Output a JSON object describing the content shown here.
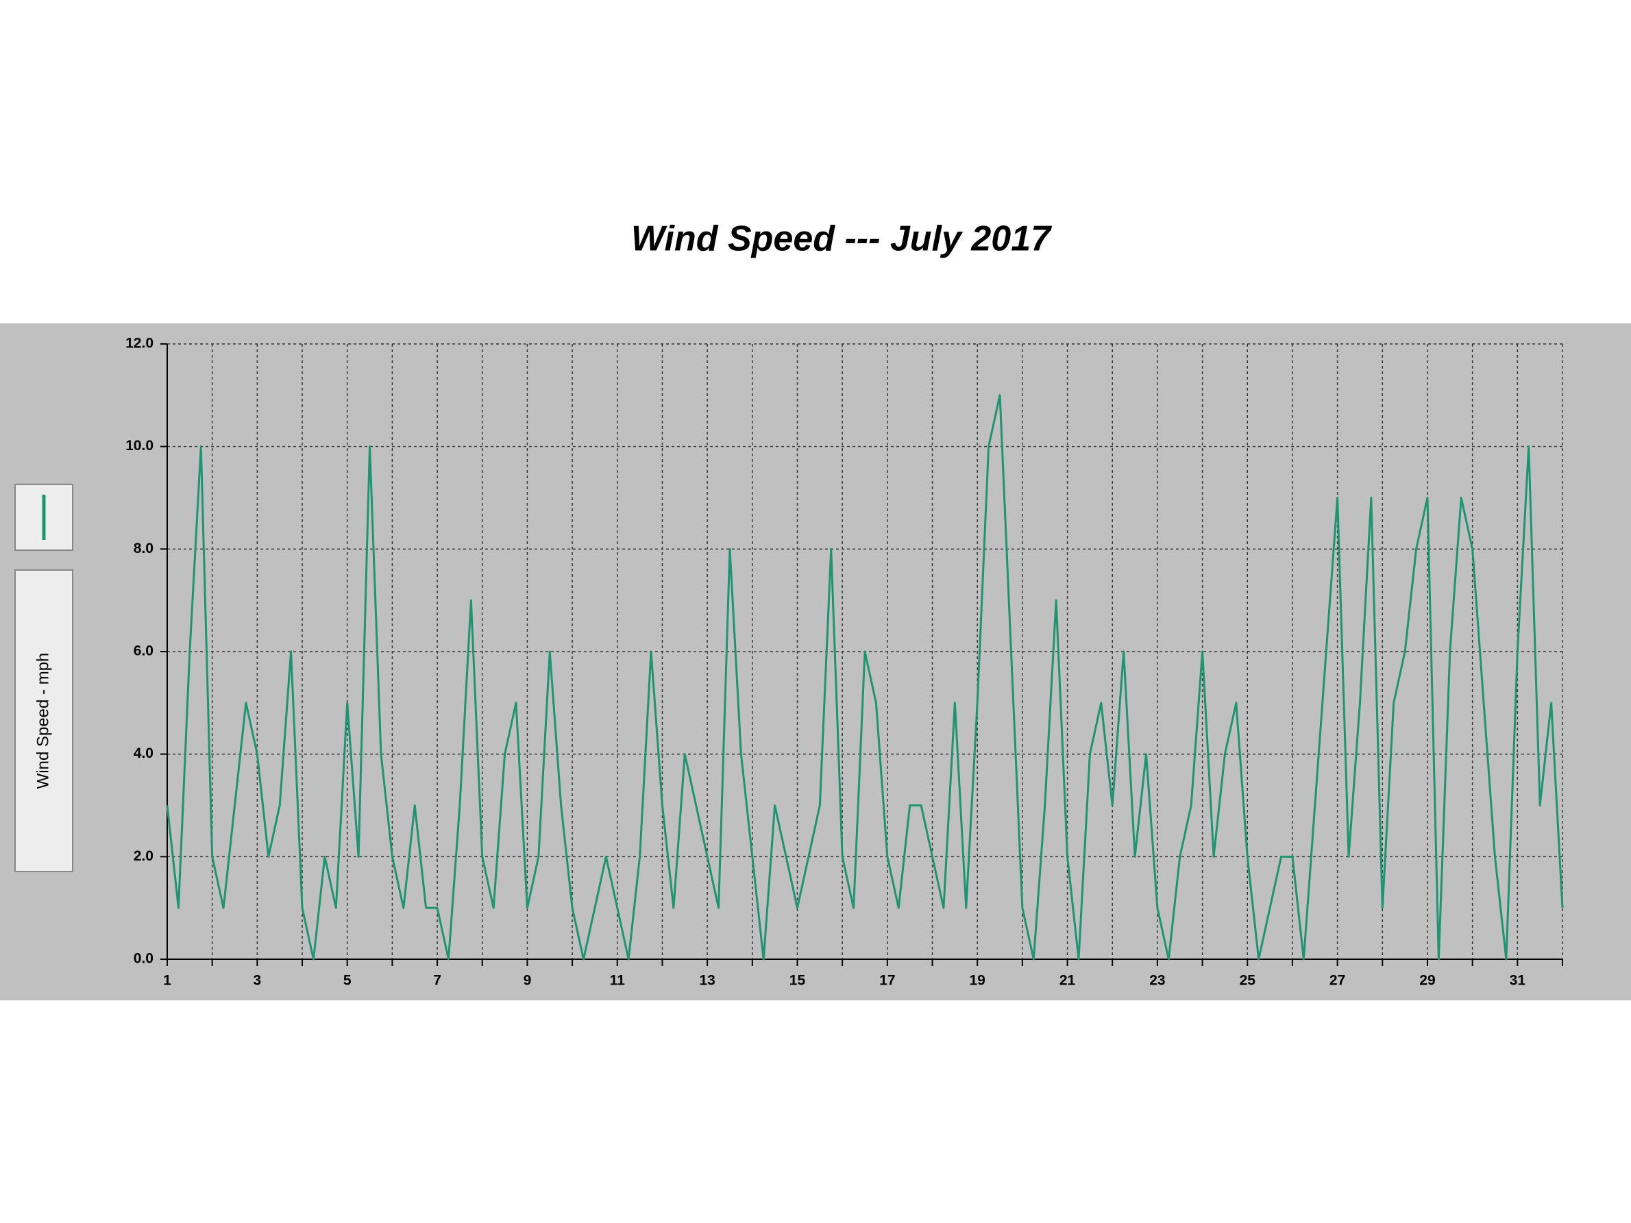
{
  "chart_data": {
    "type": "line",
    "title": "Wind Speed --- July 2017",
    "ylabel": "Wind Speed - mph",
    "x": [
      1,
      1.25,
      1.5,
      1.75,
      2,
      2.25,
      2.5,
      2.75,
      3,
      3.25,
      3.5,
      3.75,
      4,
      4.25,
      4.5,
      4.75,
      5,
      5.25,
      5.5,
      5.75,
      6,
      6.25,
      6.5,
      6.75,
      7,
      7.25,
      7.5,
      7.75,
      8,
      8.25,
      8.5,
      8.75,
      9,
      9.25,
      9.5,
      9.75,
      10,
      10.25,
      10.5,
      10.75,
      11,
      11.25,
      11.5,
      11.75,
      12,
      12.25,
      12.5,
      12.75,
      13,
      13.25,
      13.5,
      13.75,
      14,
      14.25,
      14.5,
      14.75,
      15,
      15.25,
      15.5,
      15.75,
      16,
      16.25,
      16.5,
      16.75,
      17,
      17.25,
      17.5,
      17.75,
      18,
      18.25,
      18.5,
      18.75,
      19,
      19.25,
      19.5,
      19.75,
      20,
      20.25,
      20.5,
      20.75,
      21,
      21.25,
      21.5,
      21.75,
      22,
      22.25,
      22.5,
      22.75,
      23,
      23.25,
      23.5,
      23.75,
      24,
      24.25,
      24.5,
      24.75,
      25,
      25.25,
      25.5,
      25.75,
      26,
      26.25,
      26.5,
      26.75,
      27,
      27.25,
      27.5,
      27.75,
      28,
      28.25,
      28.5,
      28.75,
      29,
      29.25,
      29.5,
      29.75,
      30,
      30.25,
      30.5,
      30.75,
      31,
      31.25,
      31.5,
      31.75,
      32
    ],
    "series": [
      {
        "color": "#1f9470",
        "values": [
          3,
          1,
          6,
          10,
          2,
          1,
          3,
          5,
          4,
          2,
          3,
          6,
          1,
          0,
          2,
          1,
          5,
          2,
          10,
          4,
          2,
          1,
          3,
          1,
          1,
          0,
          3,
          7,
          2,
          1,
          4,
          5,
          1,
          2,
          6,
          3,
          1,
          0,
          1,
          2,
          1,
          0,
          2,
          6,
          3,
          1,
          4,
          3,
          2,
          1,
          8,
          4,
          2,
          0,
          3,
          2,
          1,
          2,
          3,
          8,
          2,
          1,
          6,
          5,
          2,
          1,
          3,
          3,
          2,
          1,
          5,
          1,
          5,
          10,
          11,
          6,
          1,
          0,
          3,
          7,
          2,
          0,
          4,
          5,
          3,
          6,
          2,
          4,
          1,
          0,
          2,
          3,
          6,
          2,
          4,
          5,
          2,
          0,
          1,
          2,
          2,
          0,
          3,
          6,
          9,
          2,
          5,
          9,
          1,
          5,
          6,
          8,
          9,
          0,
          6,
          9,
          8,
          5,
          2,
          0,
          6,
          10,
          3,
          5,
          1
        ]
      }
    ],
    "xlim": [
      1,
      32
    ],
    "ylim": [
      0,
      12
    ],
    "xticks": [
      1,
      {
        "value": 2,
        "label": null
      },
      3,
      {
        "value": 4,
        "label": null
      },
      5,
      {
        "value": 6,
        "label": null
      },
      7,
      {
        "value": 8,
        "label": null
      },
      9,
      {
        "value": 10,
        "label": null
      },
      11,
      {
        "value": 12,
        "label": null
      },
      13,
      {
        "value": 14,
        "label": null
      },
      15,
      {
        "value": 16,
        "label": null
      },
      17,
      {
        "value": 18,
        "label": null
      },
      19,
      {
        "value": 20,
        "label": null
      },
      21,
      {
        "value": 22,
        "label": null
      },
      23,
      {
        "value": 24,
        "label": null
      },
      25,
      {
        "value": 26,
        "label": null
      },
      27,
      {
        "value": 28,
        "label": null
      },
      29,
      {
        "value": 30,
        "label": null
      },
      31,
      {
        "value": 32,
        "label": null
      }
    ],
    "yticks": [
      {
        "value": 0,
        "label": "0.0"
      },
      {
        "value": 2,
        "label": "2.0"
      },
      {
        "value": 4,
        "label": "4.0"
      },
      {
        "value": 6,
        "label": "6.0"
      },
      {
        "value": 8,
        "label": "8.0"
      },
      {
        "value": 10,
        "label": "10.0"
      },
      {
        "value": 12,
        "label": "12.0"
      }
    ],
    "grid": true
  }
}
